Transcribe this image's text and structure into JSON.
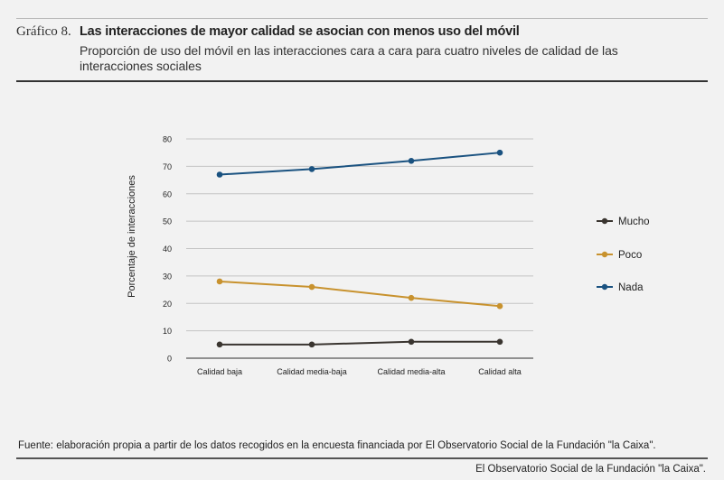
{
  "header": {
    "label": "Gráfico 8.",
    "title": "Las interacciones de mayor calidad se asocian con menos uso del móvil",
    "subtitle": "Proporción de uso del móvil en las interacciones cara a cara para cuatro niveles de calidad de las interacciones sociales"
  },
  "chart_data": {
    "type": "line",
    "ylabel": "Porcentaje de interacciones",
    "xlabel": "",
    "ylim": [
      0,
      80
    ],
    "yticks": [
      0,
      10,
      20,
      30,
      40,
      50,
      60,
      70,
      80
    ],
    "grid": true,
    "legend_position": "right",
    "categories": [
      "Calidad baja",
      "Calidad media-baja",
      "Calidad media-alta",
      "Calidad alta"
    ],
    "series": [
      {
        "name": "Mucho",
        "color": "#3a3530",
        "values": [
          5,
          5,
          6,
          6
        ]
      },
      {
        "name": "Poco",
        "color": "#c8922e",
        "values": [
          28,
          26,
          22,
          19
        ]
      },
      {
        "name": "Nada",
        "color": "#1a5280",
        "values": [
          67,
          69,
          72,
          75
        ]
      }
    ]
  },
  "footer": {
    "source": "Fuente: elaboración propia a partir de los datos recogidos en la encuesta financiada por El Observatorio Social de la Fundación \"la Caixa\".",
    "publisher": "El Observatorio Social de la Fundación \"la Caixa\"."
  }
}
